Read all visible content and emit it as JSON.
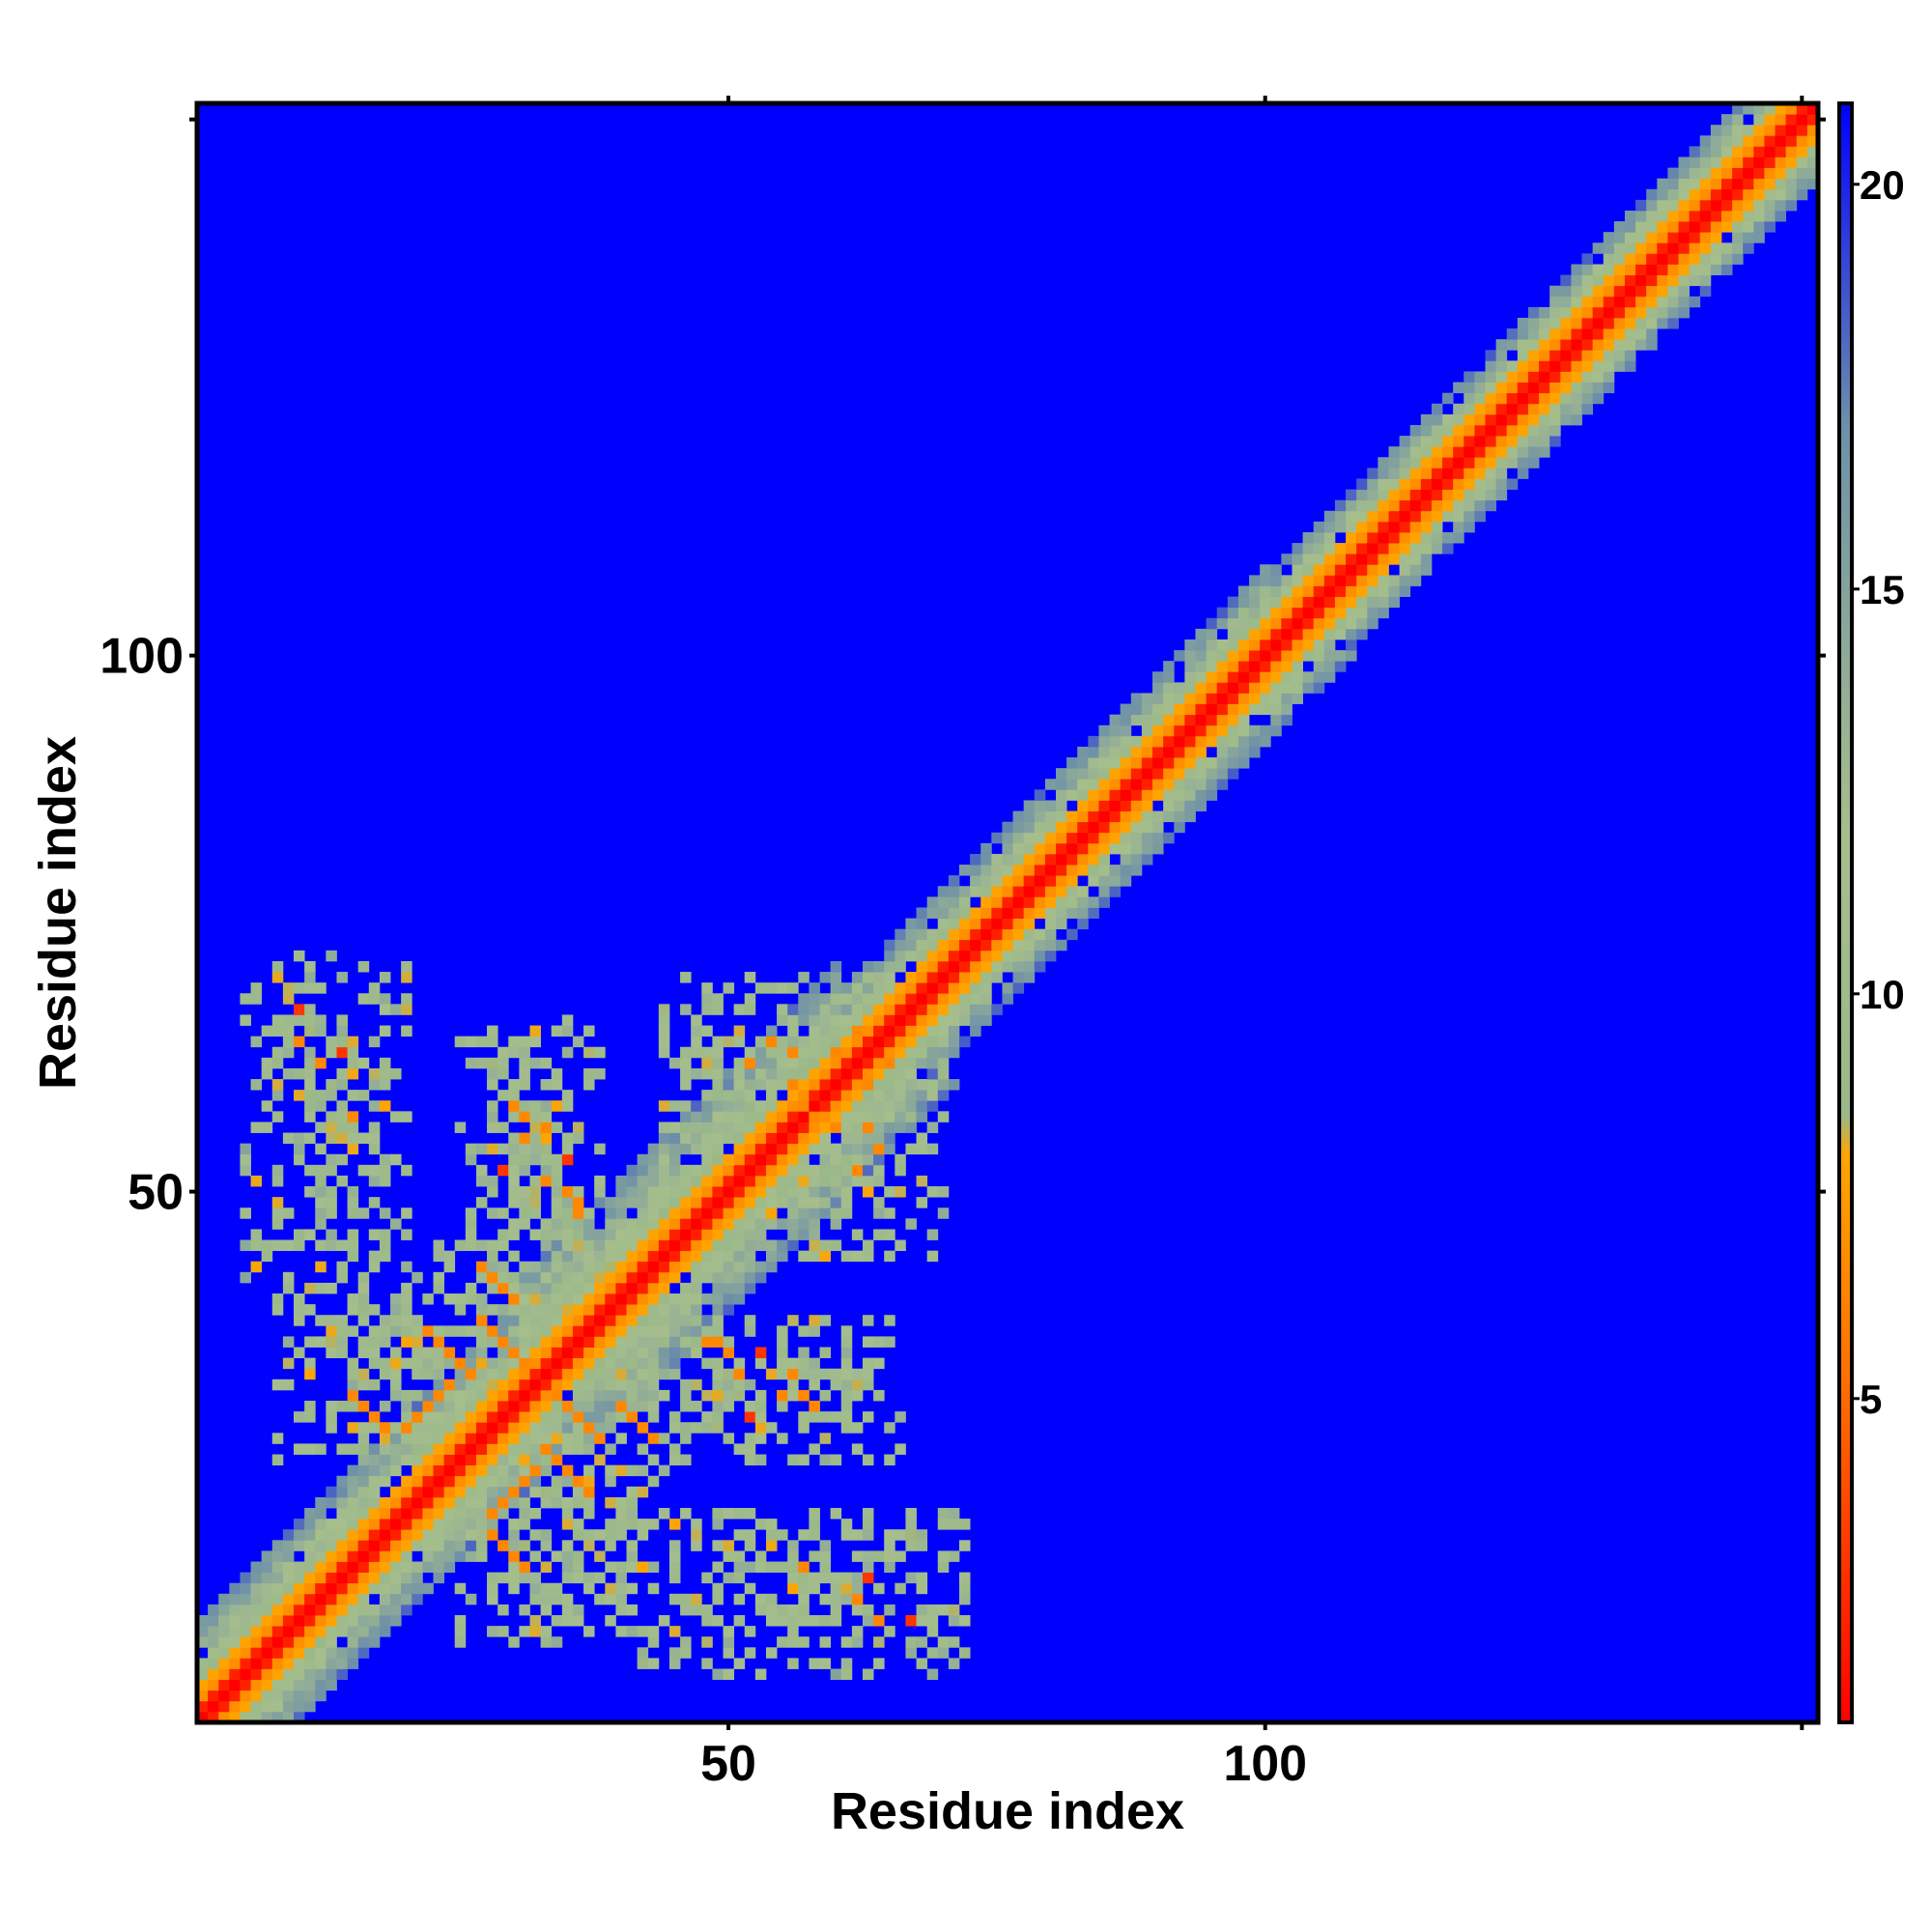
{
  "chart_data": {
    "type": "heatmap",
    "title": "",
    "xlabel": "Residue index",
    "ylabel": "Residue index",
    "n_residues": 151,
    "xlim": [
      1,
      151
    ],
    "ylim": [
      1,
      151
    ],
    "x_ticks": [
      50,
      100,
      150
    ],
    "x_tick_labels": [
      "50",
      "100",
      ""
    ],
    "y_ticks": [
      50,
      100,
      150
    ],
    "y_tick_labels": [
      "50",
      "100",
      ""
    ],
    "colorbar": {
      "range": [
        1,
        21
      ],
      "ticks": [
        5,
        10,
        15,
        20
      ],
      "tick_labels": [
        "5",
        "10",
        "15",
        "20"
      ],
      "stops": [
        {
          "value": 1,
          "color": "#ff0000"
        },
        {
          "value": 5,
          "color": "#ff6a00"
        },
        {
          "value": 8,
          "color": "#ffa500"
        },
        {
          "value": 8.5,
          "color": "#9ab88a"
        },
        {
          "value": 12,
          "color": "#a6be8c"
        },
        {
          "value": 17,
          "color": "#6e90a8"
        },
        {
          "value": 21,
          "color": "#0000ff"
        }
      ]
    },
    "background_value": 21,
    "diagonal_band": {
      "core_width": 1.6,
      "orange_width": 3.2,
      "halo_width_by_region": [
        {
          "from": 1,
          "to": 30,
          "halo": 9
        },
        {
          "from": 30,
          "to": 60,
          "halo": 11
        },
        {
          "from": 60,
          "to": 100,
          "halo": 8
        },
        {
          "from": 100,
          "to": 151,
          "halo": 7
        }
      ]
    },
    "contact_regions": [
      {
        "x": [
          6,
          20
        ],
        "y": [
          42,
          72
        ],
        "value": 11
      },
      {
        "x": [
          25,
          38
        ],
        "y": [
          40,
          66
        ],
        "value": 11
      },
      {
        "x": [
          44,
          68
        ],
        "y": [
          45,
          70
        ],
        "value": 11
      },
      {
        "x": [
          8,
          30
        ],
        "y": [
          25,
          45
        ],
        "value": 11
      },
      {
        "x": [
          30,
          66
        ],
        "y": [
          25,
          38
        ],
        "value": 11
      },
      {
        "x": [
          25,
          42
        ],
        "y": [
          12,
          30
        ],
        "value": 12
      },
      {
        "x": [
          42,
          72
        ],
        "y": [
          5,
          20
        ],
        "value": 12
      }
    ],
    "orange_contacts": [
      [
        20,
        28
      ],
      [
        21,
        29
      ],
      [
        22,
        30
      ],
      [
        23,
        31
      ],
      [
        24,
        32
      ],
      [
        27,
        38
      ],
      [
        28,
        37
      ],
      [
        29,
        36
      ],
      [
        30,
        35
      ],
      [
        31,
        34
      ],
      [
        33,
        26
      ],
      [
        34,
        25
      ],
      [
        35,
        24
      ],
      [
        36,
        23
      ],
      [
        37,
        22
      ],
      [
        28,
        18
      ],
      [
        29,
        17
      ],
      [
        30,
        16
      ],
      [
        31,
        15
      ],
      [
        40,
        30
      ],
      [
        41,
        29
      ],
      [
        42,
        28
      ],
      [
        43,
        27
      ],
      [
        12,
        62
      ],
      [
        15,
        57
      ],
      [
        30,
        58
      ],
      [
        31,
        55
      ],
      [
        33,
        51
      ],
      [
        36,
        49
      ],
      [
        52,
        62
      ],
      [
        54,
        64
      ],
      [
        56,
        60
      ],
      [
        58,
        57
      ],
      [
        60,
        63
      ],
      [
        62,
        65
      ],
      [
        63,
        56
      ],
      [
        64,
        10
      ],
      [
        56,
        33
      ],
      [
        57,
        31
      ],
      [
        48,
        36
      ],
      [
        50,
        35
      ]
    ]
  }
}
